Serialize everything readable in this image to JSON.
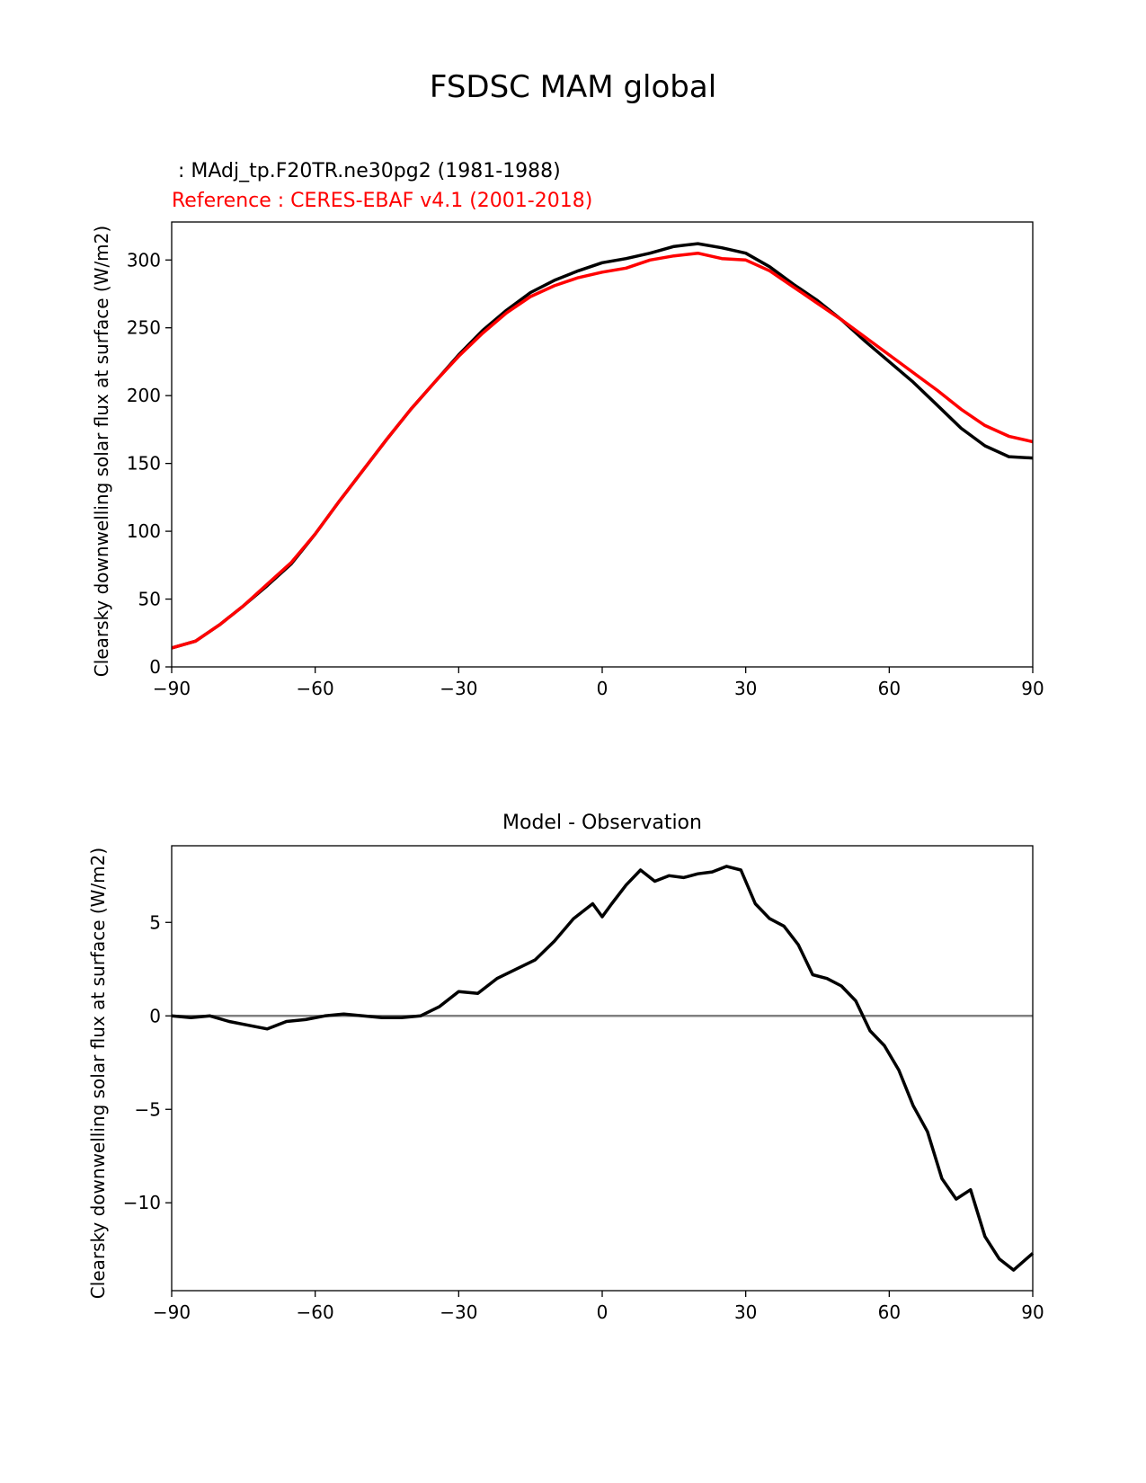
{
  "figure": {
    "title": "FSDSC MAM global"
  },
  "chart_data": [
    {
      "type": "line",
      "title": "",
      "test_label": " : MAdj_tp.F20TR.ne30pg2 (1981-1988)",
      "ref_label": "Reference : CERES-EBAF v4.1 (2001-2018)",
      "xlabel": "",
      "ylabel": "Clearsky downwelling solar flux at surface (W/m2)",
      "xlim": [
        -90,
        90
      ],
      "ylim": [
        0,
        328
      ],
      "xticks": [
        -90,
        -60,
        -30,
        0,
        30,
        60,
        90
      ],
      "xtick_labels": [
        "−90",
        "−60",
        "−30",
        "0",
        "30",
        "60",
        "90"
      ],
      "yticks": [
        0,
        50,
        100,
        150,
        200,
        250,
        300
      ],
      "ytick_labels": [
        "0",
        "50",
        "100",
        "150",
        "200",
        "250",
        "300"
      ],
      "grid": false,
      "x": [
        -90,
        -85,
        -80,
        -75,
        -70,
        -65,
        -60,
        -55,
        -50,
        -45,
        -40,
        -35,
        -30,
        -25,
        -20,
        -15,
        -10,
        -5,
        0,
        5,
        10,
        15,
        20,
        25,
        30,
        35,
        40,
        45,
        50,
        55,
        60,
        65,
        70,
        75,
        80,
        85,
        90
      ],
      "series": [
        {
          "name": "test",
          "color": "#000000",
          "values": [
            14,
            19,
            31,
            45,
            60,
            76,
            98,
            122,
            145,
            168,
            190,
            210,
            230,
            248,
            263,
            276,
            285,
            292,
            298,
            301,
            305,
            310,
            312,
            309,
            305,
            295,
            282,
            270,
            256,
            240,
            225,
            210,
            193,
            176,
            163,
            155,
            154
          ]
        },
        {
          "name": "reference",
          "color": "#ff0000",
          "values": [
            14,
            19,
            31,
            45,
            61,
            77,
            98,
            122,
            145,
            168,
            190,
            210,
            229,
            246,
            261,
            273,
            281,
            287,
            291,
            294,
            300,
            303,
            305,
            301,
            300,
            292,
            280,
            268,
            256,
            243,
            230,
            217,
            204,
            190,
            178,
            170,
            166
          ]
        }
      ]
    },
    {
      "type": "line",
      "title": "Model - Observation",
      "xlabel": "",
      "ylabel": "Clearsky downwelling solar flux at surface (W/m2)",
      "xlim": [
        -90,
        90
      ],
      "ylim": [
        -14.7,
        9.1
      ],
      "xticks": [
        -90,
        -60,
        -30,
        0,
        30,
        60,
        90
      ],
      "xtick_labels": [
        "−90",
        "−60",
        "−30",
        "0",
        "30",
        "60",
        "90"
      ],
      "yticks": [
        -10,
        -5,
        0,
        5
      ],
      "ytick_labels": [
        "−10",
        "−5",
        "0",
        "5"
      ],
      "grid": false,
      "zero_line_color": "#808080",
      "x": [
        -90,
        -86,
        -82,
        -78,
        -74,
        -70,
        -66,
        -62,
        -58,
        -54,
        -50,
        -46,
        -42,
        -38,
        -34,
        -30,
        -26,
        -22,
        -18,
        -14,
        -10,
        -6,
        -2,
        0,
        2,
        5,
        8,
        11,
        14,
        17,
        20,
        23,
        26,
        29,
        32,
        35,
        38,
        41,
        44,
        47,
        50,
        53,
        56,
        59,
        62,
        65,
        68,
        71,
        74,
        77,
        80,
        83,
        86,
        90
      ],
      "series": [
        {
          "name": "difference",
          "color": "#000000",
          "values": [
            0.0,
            -0.1,
            0.0,
            -0.3,
            -0.5,
            -0.7,
            -0.3,
            -0.2,
            0.0,
            0.1,
            0.0,
            -0.1,
            -0.1,
            0.0,
            0.5,
            1.3,
            1.2,
            2.0,
            2.5,
            3.0,
            4.0,
            5.2,
            6.0,
            5.3,
            6.0,
            7.0,
            7.8,
            7.2,
            7.5,
            7.4,
            7.6,
            7.7,
            8.0,
            7.8,
            6.0,
            5.2,
            4.8,
            3.8,
            2.2,
            2.0,
            1.6,
            0.8,
            -0.8,
            -1.6,
            -2.9,
            -4.8,
            -6.2,
            -8.7,
            -9.8,
            -9.3,
            -11.8,
            -13.0,
            -13.6,
            -12.7
          ]
        }
      ]
    }
  ]
}
